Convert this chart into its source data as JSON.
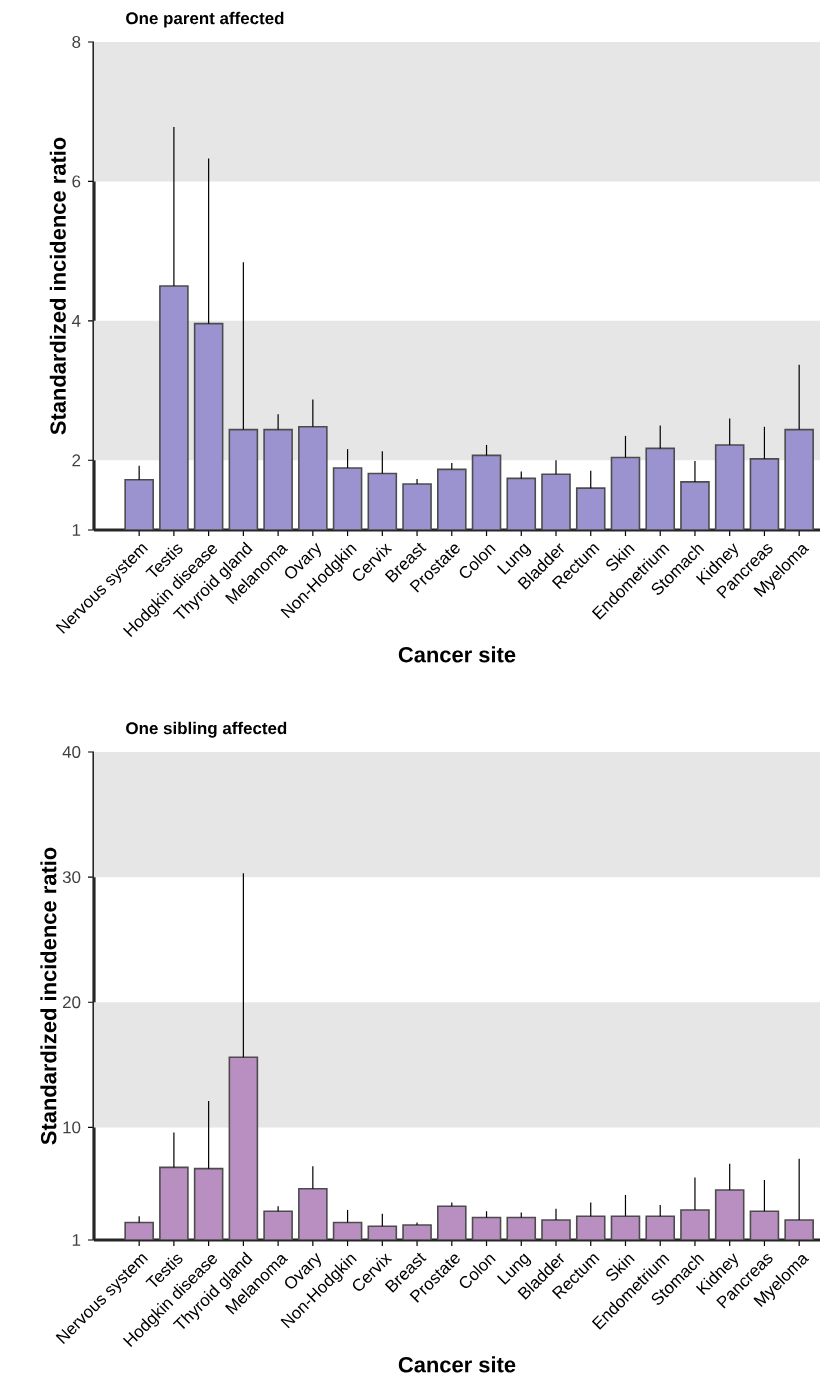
{
  "chart_data": [
    {
      "type": "bar",
      "title": "One parent affected",
      "xlabel": "Cancer site",
      "ylabel": "Standardized incidence ratio",
      "categories": [
        "Nervous system",
        "Testis",
        "Hodgkin disease",
        "Thyroid gland",
        "Melanoma",
        "Ovary",
        "Non-Hodgkin",
        "Cervix",
        "Breast",
        "Prostate",
        "Colon",
        "Lung",
        "Bladder",
        "Rectum",
        "Skin",
        "Endometrium",
        "Stomach",
        "Kidney",
        "Pancreas",
        "Myeloma"
      ],
      "values": [
        1.72,
        4.5,
        3.96,
        2.44,
        2.44,
        2.48,
        1.89,
        1.81,
        1.66,
        1.87,
        2.07,
        1.74,
        1.8,
        1.6,
        2.04,
        2.17,
        1.69,
        2.22,
        2.02,
        2.44
      ],
      "errors": [
        [
          1.72,
          1.92
        ],
        [
          4.5,
          6.78
        ],
        [
          3.96,
          6.33
        ],
        [
          2.44,
          4.84
        ],
        [
          2.44,
          2.66
        ],
        [
          2.48,
          2.87
        ],
        [
          1.89,
          2.16
        ],
        [
          1.81,
          2.13
        ],
        [
          1.66,
          1.73
        ],
        [
          1.87,
          1.96
        ],
        [
          2.07,
          2.22
        ],
        [
          1.74,
          1.84
        ],
        [
          1.8,
          2.0
        ],
        [
          1.6,
          1.85
        ],
        [
          2.04,
          2.35
        ],
        [
          2.17,
          2.5
        ],
        [
          1.69,
          1.99
        ],
        [
          2.22,
          2.6
        ],
        [
          2.02,
          2.48
        ],
        [
          2.44,
          3.37
        ]
      ],
      "color": "#9a93cf",
      "ylim": [
        1,
        8
      ],
      "yticks": [
        1,
        2,
        4,
        6,
        8
      ],
      "bands": [
        {
          "axis": "y",
          "from": 2,
          "to": 4,
          "color": "#e6e6e6"
        },
        {
          "axis": "y",
          "from": 6,
          "to": 8,
          "color": "#e6e6e6"
        }
      ]
    },
    {
      "type": "bar",
      "title": "One sibling affected",
      "xlabel": "Cancer site",
      "ylabel": "Standardized incidence ratio",
      "categories": [
        "Nervous system",
        "Testis",
        "Hodgkin disease",
        "Thyroid gland",
        "Melanoma",
        "Ovary",
        "Non-Hodgkin",
        "Cervix",
        "Breast",
        "Prostate",
        "Colon",
        "Lung",
        "Bladder",
        "Rectum",
        "Skin",
        "Endometrium",
        "Stomach",
        "Kidney",
        "Pancreas",
        "Myeloma"
      ],
      "values": [
        2.4,
        6.8,
        6.7,
        15.6,
        3.3,
        5.1,
        2.4,
        2.1,
        2.2,
        3.7,
        2.8,
        2.8,
        2.6,
        2.9,
        2.9,
        2.9,
        3.4,
        5.0,
        3.3,
        2.6
      ],
      "errors": [
        [
          2.4,
          2.9
        ],
        [
          6.8,
          9.6
        ],
        [
          6.7,
          12.1
        ],
        [
          15.6,
          30.3
        ],
        [
          3.3,
          3.7
        ],
        [
          5.1,
          6.9
        ],
        [
          2.4,
          3.4
        ],
        [
          2.1,
          3.1
        ],
        [
          2.2,
          2.4
        ],
        [
          3.7,
          4.0
        ],
        [
          2.8,
          3.3
        ],
        [
          2.8,
          3.2
        ],
        [
          2.6,
          3.5
        ],
        [
          2.9,
          4.0
        ],
        [
          2.9,
          4.6
        ],
        [
          2.9,
          3.8
        ],
        [
          3.4,
          6.0
        ],
        [
          5.0,
          7.1
        ],
        [
          3.3,
          5.8
        ],
        [
          2.6,
          7.5
        ]
      ],
      "color": "#b88fc0",
      "ylim": [
        1,
        40
      ],
      "yticks": [
        1,
        10,
        20,
        30,
        40
      ],
      "bands": [
        {
          "axis": "y",
          "from": 10,
          "to": 20,
          "color": "#e6e6e6"
        },
        {
          "axis": "y",
          "from": 30,
          "to": 40,
          "color": "#e6e6e6"
        }
      ]
    }
  ]
}
